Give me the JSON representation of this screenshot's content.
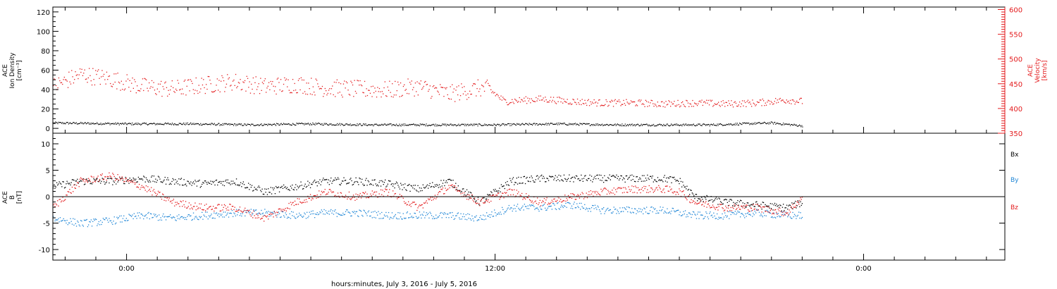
{
  "xaxis": {
    "label": "hours:minutes, July  3, 2016 - July  5, 2016",
    "ticks": [
      {
        "hour": 0,
        "label": "0:00"
      },
      {
        "hour": 12,
        "label": "12:00"
      },
      {
        "hour": 24,
        "label": "0:00"
      }
    ],
    "range_hours": [
      -2.4,
      28.6
    ],
    "data_end_hour": 22.0
  },
  "colors": {
    "black": "#000000",
    "red": "#e31a1c",
    "blue": "#1f86d6"
  },
  "chart_data": [
    {
      "type": "scatter",
      "panel": "ACE plasma",
      "ylabel_left": [
        "ACE",
        "Ion Density",
        "[cm⁻³]"
      ],
      "ylabel_right": [
        "ACE",
        "Velocity",
        "[km/s]"
      ],
      "ylim_left": [
        -5,
        125
      ],
      "yticks_left": [
        0,
        20,
        40,
        60,
        80,
        100,
        120
      ],
      "ylim_right": [
        350,
        605
      ],
      "yticks_right": [
        350,
        400,
        450,
        500,
        550,
        600
      ],
      "series": [
        {
          "name": "Ion Density",
          "axis": "left",
          "color": "black",
          "x": [
            -2.4,
            0,
            2,
            4,
            6,
            8,
            10,
            12,
            14,
            16,
            18,
            19,
            20,
            21,
            22
          ],
          "y": [
            6,
            5,
            5,
            4,
            5,
            4,
            4,
            4,
            5,
            4,
            4,
            4,
            5,
            6,
            3
          ]
        },
        {
          "name": "Velocity",
          "axis": "right",
          "color": "red",
          "x": [
            -2.4,
            -1.5,
            -0.5,
            0.5,
            1.5,
            2.5,
            3.5,
            4.5,
            5.5,
            6.5,
            7.5,
            8.5,
            9.5,
            10.5,
            11.5,
            11.8,
            12.3,
            13.5,
            14.5,
            15.5,
            16.5,
            17.5,
            18.5,
            19.5,
            20.5,
            21.5,
            22.0
          ],
          "y": [
            445,
            470,
            460,
            445,
            440,
            448,
            455,
            445,
            450,
            442,
            440,
            438,
            445,
            430,
            442,
            440,
            415,
            420,
            415,
            412,
            412,
            410,
            412,
            410,
            412,
            418,
            415
          ]
        }
      ]
    },
    {
      "type": "scatter",
      "panel": "ACE magnetic field",
      "ylabel_left": [
        "ACE",
        "B",
        "[nT]"
      ],
      "ylim": [
        -12,
        12
      ],
      "yticks": [
        -10,
        -5,
        0,
        5,
        10
      ],
      "series": [
        {
          "name": "Bx",
          "color": "black",
          "x": [
            -2.4,
            -1.5,
            -0.5,
            0.5,
            1.5,
            2.5,
            3.5,
            4.5,
            5.5,
            6.5,
            7.5,
            8.5,
            9.5,
            10.5,
            11.0,
            11.5,
            12.5,
            13.5,
            14.5,
            15.5,
            16.5,
            17.5,
            18.0,
            18.5,
            19.5,
            20.5,
            21.5,
            22.0
          ],
          "y": [
            2,
            3,
            3,
            3.5,
            3,
            2.5,
            3,
            1,
            2,
            3,
            3,
            2.5,
            1.5,
            3,
            1,
            -1,
            3,
            3.5,
            3.5,
            3.5,
            3.5,
            3.5,
            3,
            0,
            -1,
            -1.5,
            -2,
            -1
          ]
        },
        {
          "name": "By",
          "color": "blue",
          "x": [
            -2.4,
            -1.5,
            -0.5,
            0.5,
            1.5,
            2.5,
            3.5,
            4.5,
            5.5,
            6.5,
            7.5,
            8.5,
            9.5,
            10.5,
            11.5,
            12.5,
            13.5,
            14.5,
            15.5,
            16.5,
            17.5,
            18.0,
            18.5,
            19.5,
            20.5,
            21.5,
            22.0
          ],
          "y": [
            -4,
            -5,
            -4.5,
            -3.5,
            -4,
            -3.5,
            -3,
            -3,
            -3.5,
            -3,
            -3,
            -3.5,
            -3.5,
            -3.5,
            -4,
            -2,
            -2,
            -1.5,
            -2.5,
            -2.5,
            -2.5,
            -3,
            -3.5,
            -3.5,
            -3,
            -3.5,
            -3.5
          ]
        },
        {
          "name": "Bz",
          "color": "red",
          "x": [
            -2.4,
            -1.5,
            -0.5,
            0.5,
            1.5,
            2.5,
            3.5,
            4.5,
            5.5,
            6.5,
            7.5,
            8.5,
            9.5,
            10.5,
            11.5,
            12.5,
            13.5,
            14.5,
            15.5,
            16.5,
            17.5,
            18.0,
            18.5,
            19.5,
            20.5,
            21.5,
            22.0
          ],
          "y": [
            -2,
            3,
            4,
            2,
            -1,
            -2,
            -2,
            -4,
            -1,
            1,
            0,
            1,
            -2,
            2,
            -1,
            1,
            -1,
            0,
            1,
            1.5,
            1.5,
            1,
            -1,
            -2,
            -2,
            -3,
            0
          ]
        }
      ]
    }
  ]
}
